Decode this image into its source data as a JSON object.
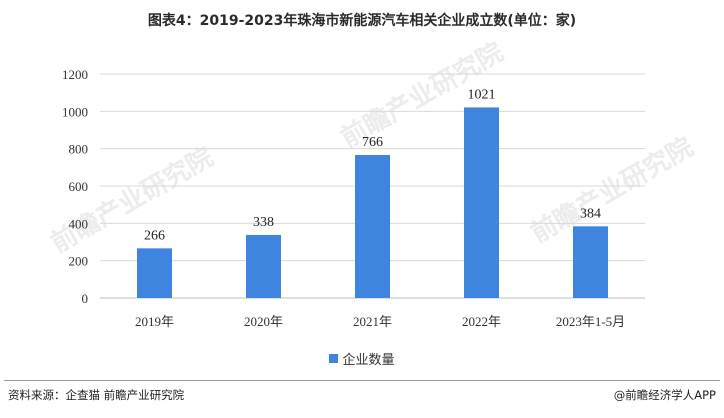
{
  "title": "图表4：2019-2023年珠海市新能源汽车相关企业成立数(单位：家)",
  "chart_data": {
    "type": "bar",
    "categories": [
      "2019年",
      "2020年",
      "2021年",
      "2022年",
      "2023年1-5月"
    ],
    "series": [
      {
        "name": "企业数量",
        "values": [
          266,
          338,
          766,
          1021,
          384
        ]
      }
    ],
    "ylim": [
      0,
      1200
    ],
    "yticks": [
      0,
      200,
      400,
      600,
      800,
      1000,
      1200
    ],
    "grid": true,
    "legend": "bottom",
    "bar_color": "#3f85e0"
  },
  "watermark": "前瞻产业研究院",
  "footer": {
    "source": "资料来源：企查猫 前瞻产业研究院",
    "brand": "@前瞻经济学人APP"
  }
}
